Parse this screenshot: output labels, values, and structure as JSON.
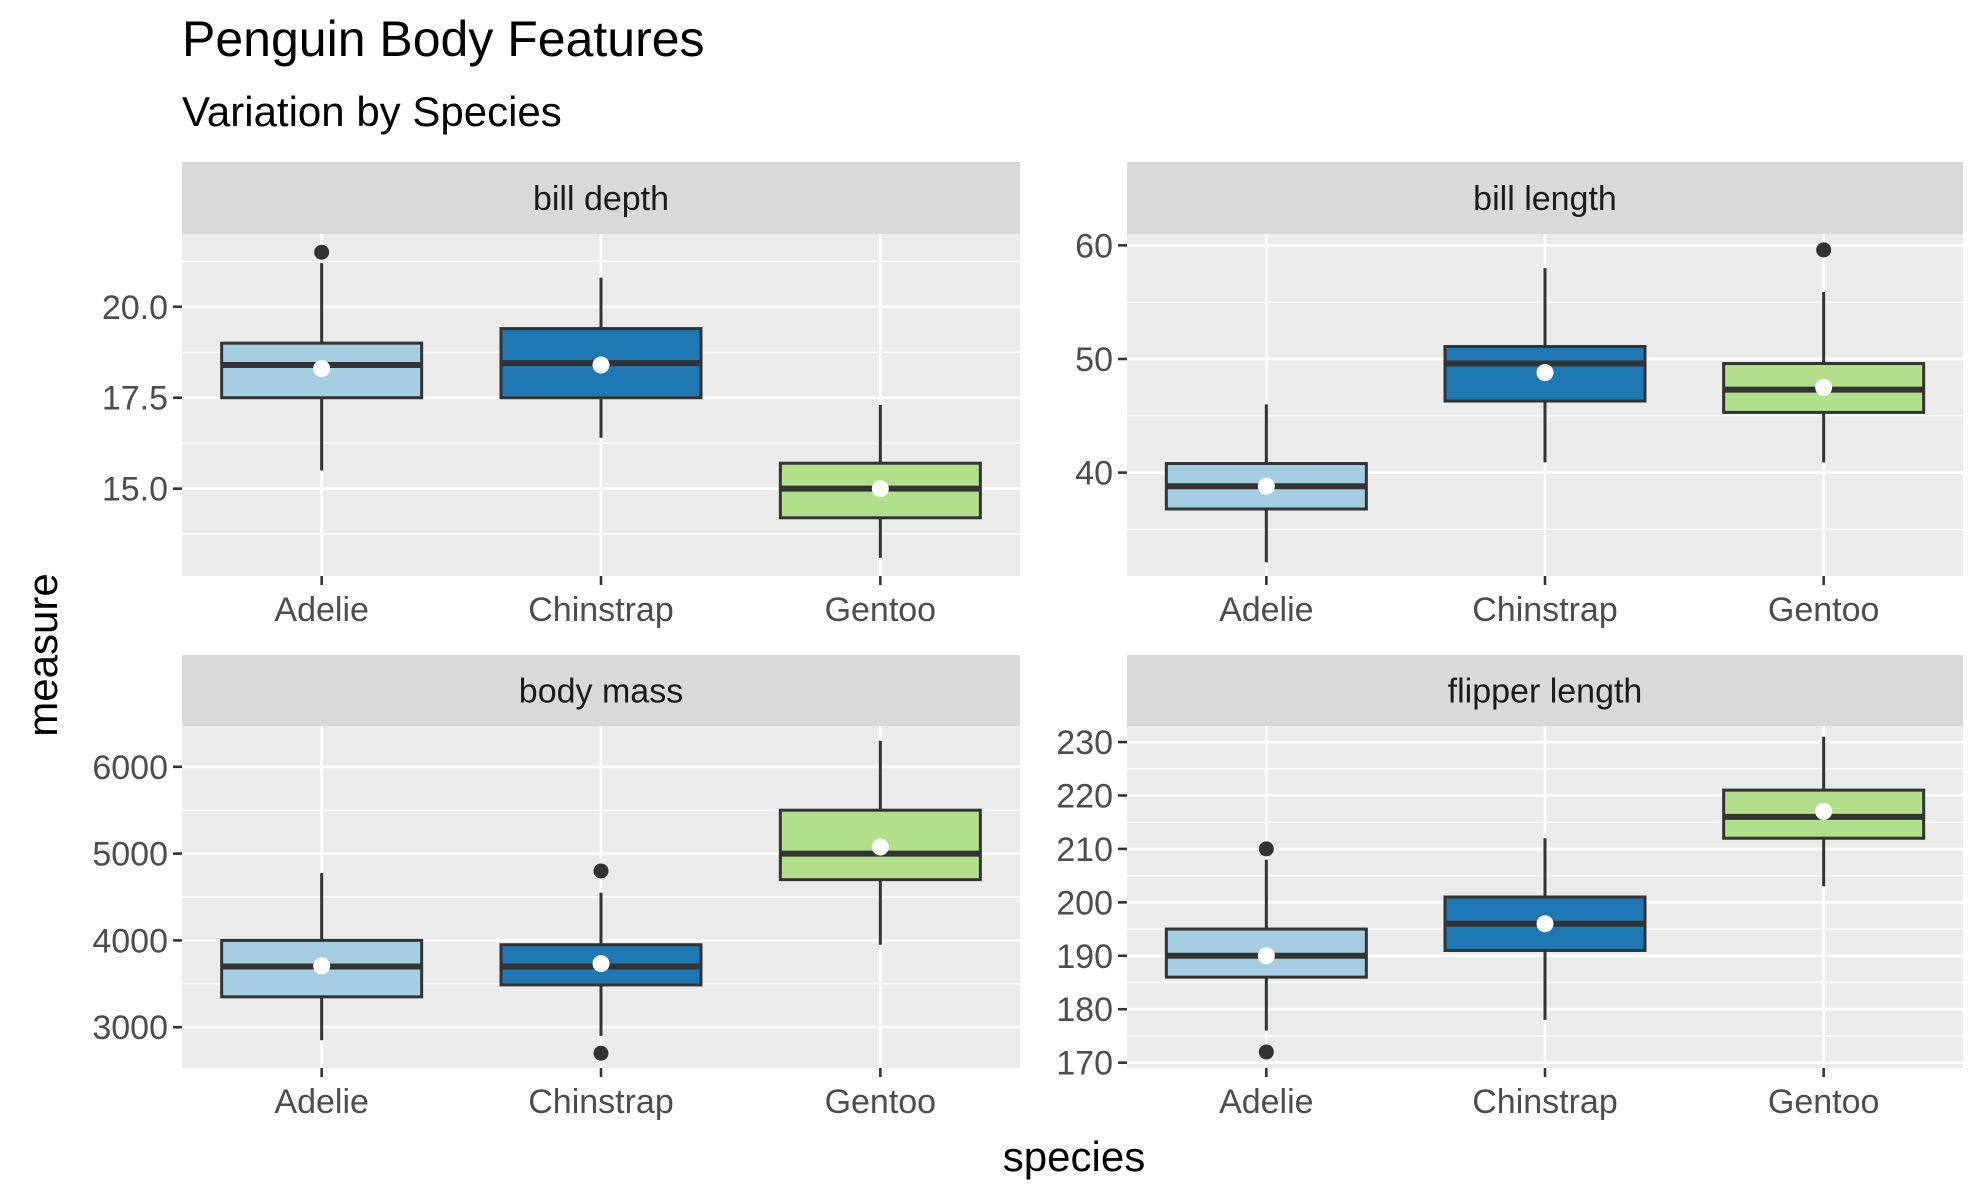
{
  "chart": {
    "title": "Penguin Body Features",
    "subtitle": "Variation by Species",
    "xlabel": "species",
    "ylabel": "measure"
  },
  "colors": {
    "panel_bg": "#EBEBEB",
    "strip_bg": "#D9D9D9",
    "grid": "#FFFFFF",
    "box_stroke": "#333333",
    "mean_point": "#FFFFFF",
    "outlier": "#333333",
    "species": {
      "Adelie": "#A6CEE3",
      "Chinstrap": "#1F78B4",
      "Gentoo": "#B2DF8A"
    }
  },
  "chart_data": [
    {
      "type": "boxplot",
      "facet": "bill depth",
      "categories": [
        "Adelie",
        "Chinstrap",
        "Gentoo"
      ],
      "ylim": [
        12.6,
        22.0
      ],
      "yticks": [
        15.0,
        17.5,
        20.0
      ],
      "ytick_labels": [
        "15.0",
        "17.5",
        "20.0"
      ],
      "boxes": [
        {
          "category": "Adelie",
          "lower": 15.5,
          "q1": 17.5,
          "median": 18.4,
          "q3": 19.0,
          "upper": 21.2,
          "mean": 18.3,
          "outliers": [
            21.5
          ]
        },
        {
          "category": "Chinstrap",
          "lower": 16.4,
          "q1": 17.5,
          "median": 18.45,
          "q3": 19.4,
          "upper": 20.8,
          "mean": 18.4,
          "outliers": []
        },
        {
          "category": "Gentoo",
          "lower": 13.1,
          "q1": 14.2,
          "median": 15.0,
          "q3": 15.7,
          "upper": 17.3,
          "mean": 15.0,
          "outliers": []
        }
      ]
    },
    {
      "type": "boxplot",
      "facet": "bill length",
      "categories": [
        "Adelie",
        "Chinstrap",
        "Gentoo"
      ],
      "ylim": [
        30.9,
        61.0
      ],
      "yticks": [
        40,
        50,
        60
      ],
      "ytick_labels": [
        "40",
        "50",
        "60"
      ],
      "boxes": [
        {
          "category": "Adelie",
          "lower": 32.1,
          "q1": 36.8,
          "median": 38.8,
          "q3": 40.8,
          "upper": 46.0,
          "mean": 38.8,
          "outliers": []
        },
        {
          "category": "Chinstrap",
          "lower": 40.9,
          "q1": 46.3,
          "median": 49.6,
          "q3": 51.1,
          "upper": 58.0,
          "mean": 48.8,
          "outliers": []
        },
        {
          "category": "Gentoo",
          "lower": 40.9,
          "q1": 45.3,
          "median": 47.3,
          "q3": 49.6,
          "upper": 55.9,
          "mean": 47.5,
          "outliers": [
            59.6
          ]
        }
      ]
    },
    {
      "type": "boxplot",
      "facet": "body mass",
      "categories": [
        "Adelie",
        "Chinstrap",
        "Gentoo"
      ],
      "ylim": [
        2530,
        6470
      ],
      "yticks": [
        3000,
        4000,
        5000,
        6000
      ],
      "ytick_labels": [
        "3000",
        "4000",
        "5000",
        "6000"
      ],
      "boxes": [
        {
          "category": "Adelie",
          "lower": 2850,
          "q1": 3350,
          "median": 3700,
          "q3": 4000,
          "upper": 4775,
          "mean": 3706,
          "outliers": []
        },
        {
          "category": "Chinstrap",
          "lower": 2900,
          "q1": 3487,
          "median": 3700,
          "q3": 3950,
          "upper": 4550,
          "mean": 3733,
          "outliers": [
            4800,
            2700
          ]
        },
        {
          "category": "Gentoo",
          "lower": 3950,
          "q1": 4700,
          "median": 5000,
          "q3": 5500,
          "upper": 6300,
          "mean": 5076,
          "outliers": []
        }
      ]
    },
    {
      "type": "boxplot",
      "facet": "flipper length",
      "categories": [
        "Adelie",
        "Chinstrap",
        "Gentoo"
      ],
      "ylim": [
        169,
        233
      ],
      "yticks": [
        170,
        180,
        190,
        200,
        210,
        220,
        230
      ],
      "ytick_labels": [
        "170",
        "180",
        "190",
        "200",
        "210",
        "220",
        "230"
      ],
      "boxes": [
        {
          "category": "Adelie",
          "lower": 176,
          "q1": 186,
          "median": 190,
          "q3": 195,
          "upper": 208,
          "mean": 190,
          "outliers": [
            210,
            172
          ]
        },
        {
          "category": "Chinstrap",
          "lower": 178,
          "q1": 191,
          "median": 196,
          "q3": 201,
          "upper": 212,
          "mean": 196,
          "outliers": []
        },
        {
          "category": "Gentoo",
          "lower": 203,
          "q1": 212,
          "median": 216,
          "q3": 221,
          "upper": 231,
          "mean": 217,
          "outliers": []
        }
      ]
    }
  ]
}
